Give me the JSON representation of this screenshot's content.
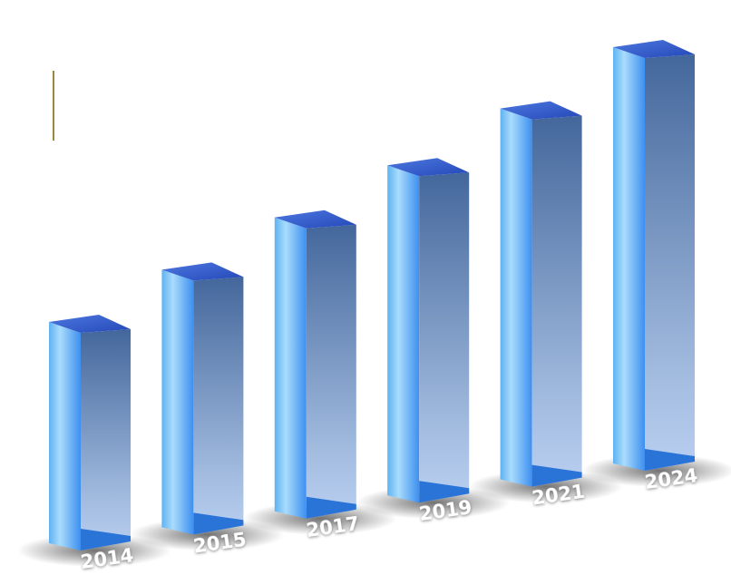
{
  "chart_data": {
    "type": "bar",
    "categories": [
      "2014",
      "2015",
      "2017",
      "2019",
      "2021",
      "2024"
    ],
    "values": [
      250,
      290,
      330,
      370,
      415,
      465
    ]
  }
}
